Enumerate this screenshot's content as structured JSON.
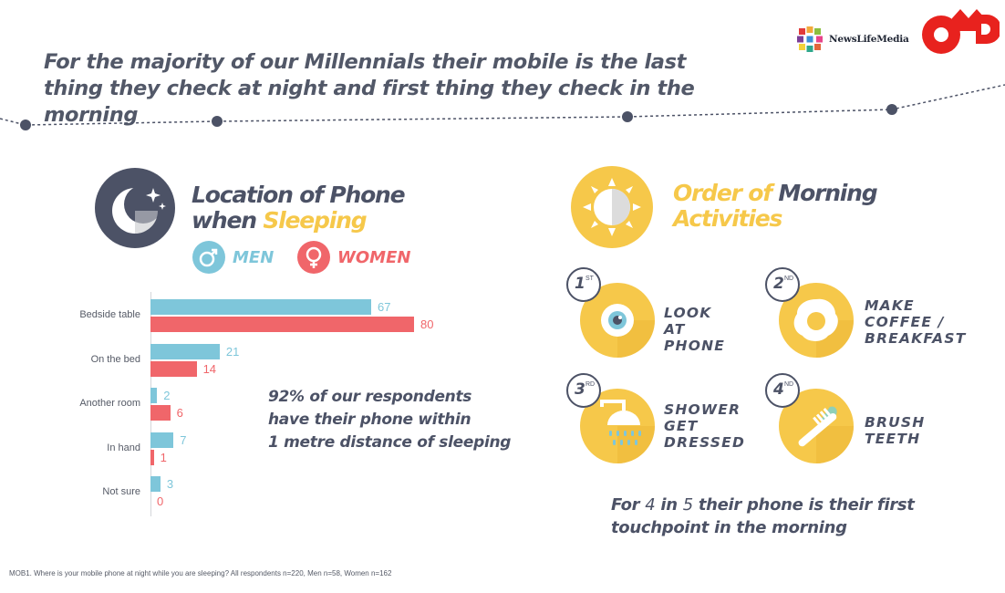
{
  "headline": "For the majority of our Millennials their mobile is the last thing they check at night and first thing they check in the morning",
  "logos": {
    "newslifemedia": "NewsLifeMedia",
    "omd": "OMD"
  },
  "location_section": {
    "title_part1": "Location of Phone",
    "title_part2": "when ",
    "title_highlight": "Sleeping",
    "legend": {
      "men": "MEN",
      "women": "WOMEN"
    },
    "stat_lines": [
      "92% of our respondents",
      "have their phone within",
      "1 metre distance of sleeping"
    ]
  },
  "morning_section": {
    "title_highlight": "Order of ",
    "title_part1": "Morning",
    "title_part2": "Activities",
    "activities": [
      {
        "rank": "1",
        "suffix": "ST",
        "label": "LOOK AT\nPHONE",
        "icon": "eye-icon"
      },
      {
        "rank": "2",
        "suffix": "ND",
        "label": "MAKE\nCOFFEE /\nBREAKFAST",
        "icon": "fried-egg-icon"
      },
      {
        "rank": "3",
        "suffix": "RD",
        "label": "SHOWER\nGET\nDRESSED",
        "icon": "shower-icon"
      },
      {
        "rank": "4",
        "suffix": "ND",
        "label": "BRUSH\nTEETH",
        "icon": "toothbrush-icon"
      }
    ],
    "stat_line1_prefix": "For ",
    "stat_line1_num": "4",
    "stat_line1_mid": " in ",
    "stat_line1_num2": "5",
    "stat_line1_suffix": " their phone is their first",
    "stat_line2": "touchpoint in the morning"
  },
  "footnote": "MOB1. Where is your mobile phone at night while you are sleeping?   All respondents n=220, Men n=58, Women n=162",
  "colors": {
    "men": "#7ec6da",
    "women": "#f0666a",
    "yellow": "#f6c84a",
    "dark": "#4c5266"
  },
  "chart_data": {
    "type": "bar",
    "orientation": "horizontal",
    "categories": [
      "Bedside table",
      "On the bed",
      "Another room",
      "In hand",
      "Not sure"
    ],
    "series": [
      {
        "name": "MEN",
        "values": [
          67,
          21,
          2,
          7,
          3
        ]
      },
      {
        "name": "WOMEN",
        "values": [
          80,
          14,
          6,
          1,
          0
        ]
      }
    ],
    "title": "",
    "xlabel": "",
    "ylabel": "",
    "grid": false
  }
}
